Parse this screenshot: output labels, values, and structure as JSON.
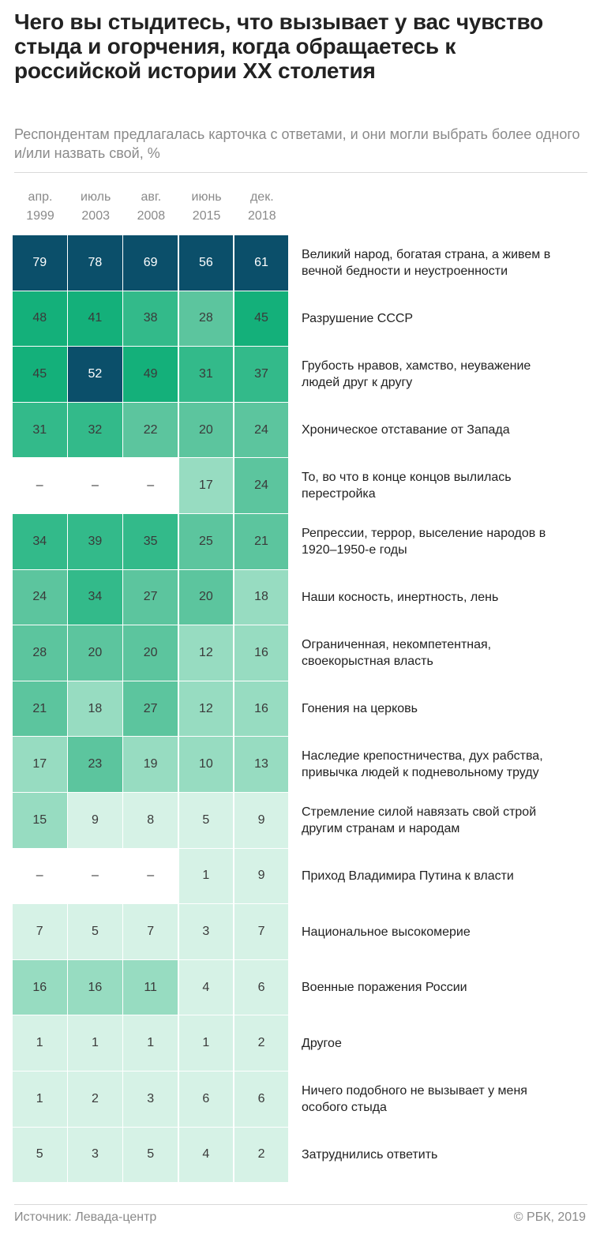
{
  "title": "Чего вы стыдитесь, что вызывает у вас чувство стыда и огорчения, когда обращаетесь к российской истории XX столетия",
  "subtitle": "Респондентам предлагалась карточка с ответами, и они могли выбрать более одного и/или назвать свой, %",
  "footer": {
    "source": "Источник: Левада-центр",
    "copyright": "© РБК, 2019"
  },
  "chart_data": {
    "type": "heatmap",
    "columns": [
      {
        "month": "апр.",
        "year": "1999"
      },
      {
        "month": "июль",
        "year": "2003"
      },
      {
        "month": "авг.",
        "year": "2008"
      },
      {
        "month": "июнь",
        "year": "2015"
      },
      {
        "month": "дек.",
        "year": "2018"
      }
    ],
    "rows": [
      {
        "label": "Великий народ, богатая страна, а живем в вечной бедности и неустроенности",
        "values": [
          79,
          78,
          69,
          56,
          61
        ]
      },
      {
        "label": "Разрушение СССР",
        "values": [
          48,
          41,
          38,
          28,
          45
        ]
      },
      {
        "label": "Грубость нравов, хамство, неуважение людей друг к другу",
        "values": [
          45,
          52,
          49,
          31,
          37
        ]
      },
      {
        "label": "Хроническое отставание от Запада",
        "values": [
          31,
          32,
          22,
          20,
          24
        ]
      },
      {
        "label": "То, во что в конце концов вылилась перестройка",
        "values": [
          null,
          null,
          null,
          17,
          24
        ]
      },
      {
        "label": "Репрессии, террор, выселение народов в 1920–1950-е годы",
        "values": [
          34,
          39,
          35,
          25,
          21
        ]
      },
      {
        "label": "Наши косность, инертность, лень",
        "values": [
          24,
          34,
          27,
          20,
          18
        ]
      },
      {
        "label": "Ограниченная, некомпетентная, своекорыстная власть",
        "values": [
          28,
          20,
          20,
          12,
          16
        ]
      },
      {
        "label": "Гонения на церковь",
        "values": [
          21,
          18,
          27,
          12,
          16
        ]
      },
      {
        "label": "Наследие крепостничества, дух рабства, привычка людей к подневольному труду",
        "values": [
          17,
          23,
          19,
          10,
          13
        ]
      },
      {
        "label": "Стремление силой навязать свой строй другим странам и народам",
        "values": [
          15,
          9,
          8,
          5,
          9
        ]
      },
      {
        "label": "Приход Владимира Путина к власти",
        "values": [
          null,
          null,
          null,
          1,
          9
        ]
      },
      {
        "label": "Национальное высокомерие",
        "values": [
          7,
          5,
          7,
          3,
          7
        ]
      },
      {
        "label": "Военные поражения России",
        "values": [
          16,
          16,
          11,
          4,
          6
        ]
      },
      {
        "label": "Другое",
        "values": [
          1,
          1,
          1,
          1,
          2
        ]
      },
      {
        "label": "Ничего подобного не вызывает у меня особого стыда",
        "values": [
          1,
          2,
          3,
          6,
          6
        ]
      },
      {
        "label": "Затруднились ответить",
        "values": [
          5,
          3,
          5,
          4,
          2
        ]
      }
    ],
    "missing_symbol": "–",
    "color_scale": {
      "bins": [
        {
          "min": 0,
          "max": 9,
          "color": "#d6f2e6"
        },
        {
          "min": 10,
          "max": 19,
          "color": "#97dcc1"
        },
        {
          "min": 20,
          "max": 29,
          "color": "#5cc59e"
        },
        {
          "min": 30,
          "max": 39,
          "color": "#33ba8a"
        },
        {
          "min": 40,
          "max": 49,
          "color": "#14b07a"
        },
        {
          "min": 50,
          "max": 100,
          "color": "#0b4f6a"
        }
      ],
      "dark_text_min": 50
    }
  }
}
